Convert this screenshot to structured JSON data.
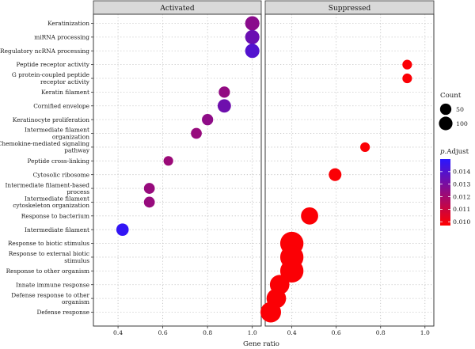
{
  "chart_data": {
    "type": "scatter",
    "xlabel": "Gene ratio",
    "panels": [
      {
        "name": "Activated",
        "xlim": [
          0.29,
          1.04
        ],
        "x_ticks": [
          "0.4",
          "0.6",
          "0.8",
          "1.0"
        ],
        "x_tick_values": [
          0.4,
          0.6,
          0.8,
          1.0
        ],
        "points": [
          {
            "category": "Keratinization",
            "x": 1.0,
            "count": 48,
            "p_adjust": 0.0126
          },
          {
            "category": "miRNA processing",
            "x": 1.0,
            "count": 48,
            "p_adjust": 0.0134
          },
          {
            "category": "Regulatory ncRNA processing",
            "x": 1.0,
            "count": 48,
            "p_adjust": 0.014
          },
          {
            "category": "Keratin filament",
            "x": 0.875,
            "count": 30,
            "p_adjust": 0.0124
          },
          {
            "category": "Cornified envelope",
            "x": 0.875,
            "count": 42,
            "p_adjust": 0.0133
          },
          {
            "category": "Keratinocyte proliferation",
            "x": 0.8,
            "count": 30,
            "p_adjust": 0.0125
          },
          {
            "category": "Intermediate filament organization",
            "x": 0.75,
            "count": 28,
            "p_adjust": 0.0123
          },
          {
            "category": "Peptide cross-linking",
            "x": 0.625,
            "count": 22,
            "p_adjust": 0.0122
          },
          {
            "category": "Intermediate filament-based process",
            "x": 0.54,
            "count": 28,
            "p_adjust": 0.0123
          },
          {
            "category": "Intermediate filament cytoskeleton organization",
            "x": 0.54,
            "count": 28,
            "p_adjust": 0.0123
          },
          {
            "category": "Intermediate filament",
            "x": 0.42,
            "count": 36,
            "p_adjust": 0.0148
          }
        ]
      },
      {
        "name": "Suppressed",
        "xlim": [
          0.28,
          1.04
        ],
        "x_ticks": [
          "0.4",
          "0.6",
          "0.8",
          "1.0"
        ],
        "x_tick_values": [
          0.4,
          0.6,
          0.8,
          1.0
        ],
        "points": [
          {
            "category": "Peptide receptor activity",
            "x": 0.92,
            "count": 22,
            "p_adjust": 0.0098
          },
          {
            "category": "G protein-coupled peptide receptor activity",
            "x": 0.92,
            "count": 22,
            "p_adjust": 0.0098
          },
          {
            "category": "Chemokine-mediated signaling pathway",
            "x": 0.73,
            "count": 22,
            "p_adjust": 0.0098
          },
          {
            "category": "Cytosolic ribosome",
            "x": 0.595,
            "count": 38,
            "p_adjust": 0.0098
          },
          {
            "category": "Response to bacterium",
            "x": 0.48,
            "count": 70,
            "p_adjust": 0.0098
          },
          {
            "category": "Response to biotic stimulus",
            "x": 0.4,
            "count": 128,
            "p_adjust": 0.0098
          },
          {
            "category": "Response to external biotic stimulus",
            "x": 0.4,
            "count": 128,
            "p_adjust": 0.0098
          },
          {
            "category": "Response to other organism",
            "x": 0.4,
            "count": 128,
            "p_adjust": 0.0098
          },
          {
            "category": "Innate immune response",
            "x": 0.345,
            "count": 90,
            "p_adjust": 0.0098
          },
          {
            "category": "Defense response to other organism",
            "x": 0.33,
            "count": 90,
            "p_adjust": 0.0098
          },
          {
            "category": "Defense response",
            "x": 0.305,
            "count": 100,
            "p_adjust": 0.0098
          }
        ]
      }
    ],
    "categories": [
      "Keratinization",
      "miRNA processing",
      "Regulatory ncRNA processing",
      "Peptide receptor activity",
      "G protein-coupled peptide receptor activity",
      "Keratin filament",
      "Cornified envelope",
      "Keratinocyte proliferation",
      "Intermediate filament organization",
      "Chemokine-mediated signaling pathway",
      "Peptide cross-linking",
      "Cytosolic ribosome",
      "Intermediate filament-based process",
      "Intermediate filament cytoskeleton organization",
      "Response to bacterium",
      "Intermediate filament",
      "Response to biotic stimulus",
      "Response to external biotic stimulus",
      "Response to other organism",
      "Innate immune response",
      "Defense response to other organism",
      "Defense response"
    ],
    "category_display": [
      [
        "Keratinization"
      ],
      [
        "miRNA processing"
      ],
      [
        "Regulatory ncRNA processing"
      ],
      [
        "Peptide receptor activity"
      ],
      [
        "G protein-coupled peptide",
        "receptor activity"
      ],
      [
        "Keratin filament"
      ],
      [
        "Cornified envelope"
      ],
      [
        "Keratinocyte proliferation"
      ],
      [
        "Intermediate filament",
        "organization"
      ],
      [
        "Chemokine-mediated signaling",
        "pathway"
      ],
      [
        "Peptide cross-linking"
      ],
      [
        "Cytosolic ribosome"
      ],
      [
        "Intermediate filament-based",
        "process"
      ],
      [
        "Intermediate filament",
        "cytoskeleton organization"
      ],
      [
        "Response to bacterium"
      ],
      [
        "Intermediate filament"
      ],
      [
        "Response to biotic stimulus"
      ],
      [
        "Response to external biotic",
        "stimulus"
      ],
      [
        "Response to other organism"
      ],
      [
        "Innate immune response"
      ],
      [
        "Defense response to other",
        "organism"
      ],
      [
        "Defense response"
      ]
    ],
    "size_legend": {
      "title": "Count",
      "items": [
        {
          "label": "50",
          "value": 50
        },
        {
          "label": "100",
          "value": 100
        }
      ]
    },
    "color_legend": {
      "title_italic": "p",
      "title_rest": ".Adjust",
      "ticks": [
        "0.014",
        "0.013",
        "0.012",
        "0.011",
        "0.010"
      ],
      "tick_values": [
        0.014,
        0.013,
        0.012,
        0.011,
        0.01
      ],
      "range": [
        0.0097,
        0.015
      ],
      "low_color": "#ff0000",
      "high_color": "#2a16ff"
    },
    "grid": true
  }
}
